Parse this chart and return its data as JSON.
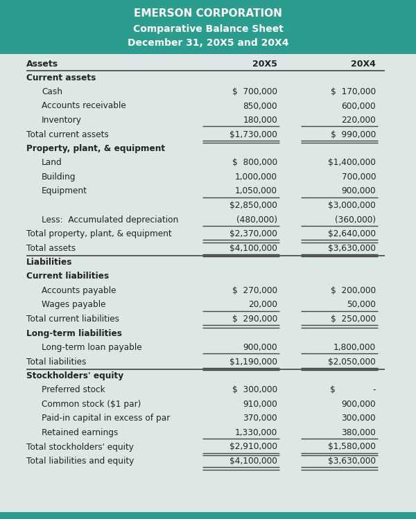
{
  "title1": "EMERSON CORPORATION",
  "title2": "Comparative Balance Sheet",
  "title3": "December 31, 20X5 and 20X4",
  "header_bg": "#2a9d8f",
  "header_text_color": "#ffffff",
  "body_bg": "#dde8e6",
  "col_headers": [
    "Assets",
    "20X5",
    "20X4"
  ],
  "footer_bg": "#2a9d8f",
  "rows": [
    {
      "label": "Current assets",
      "v1": "",
      "v2": "",
      "style": "section_bold",
      "indent": 0
    },
    {
      "label": "Cash",
      "v1": "$  700,000",
      "v2": "$  170,000",
      "style": "normal",
      "indent": 1
    },
    {
      "label": "Accounts receivable",
      "v1": "850,000",
      "v2": "600,000",
      "style": "normal",
      "indent": 1
    },
    {
      "label": "Inventory",
      "v1": "180,000",
      "v2": "220,000",
      "style": "normal_underline",
      "indent": 1
    },
    {
      "label": "Total current assets",
      "v1": "$1,730,000",
      "v2": "$  990,000",
      "style": "total_underline",
      "indent": 0
    },
    {
      "label": "Property, plant, & equipment",
      "v1": "",
      "v2": "",
      "style": "section_bold",
      "indent": 0
    },
    {
      "label": "Land",
      "v1": "$  800,000",
      "v2": "$1,400,000",
      "style": "normal",
      "indent": 1
    },
    {
      "label": "Building",
      "v1": "1,000,000",
      "v2": "700,000",
      "style": "normal",
      "indent": 1
    },
    {
      "label": "Equipment",
      "v1": "1,050,000",
      "v2": "900,000",
      "style": "normal_underline",
      "indent": 1
    },
    {
      "label": "",
      "v1": "$2,850,000",
      "v2": "$3,000,000",
      "style": "subtotal_plain",
      "indent": 1
    },
    {
      "label": "Less:  Accumulated depreciation",
      "v1": "(480,000)",
      "v2": "(360,000)",
      "style": "normal_underline",
      "indent": 1
    },
    {
      "label": "Total property, plant, & equipment",
      "v1": "$2,370,000",
      "v2": "$2,640,000",
      "style": "total_underline",
      "indent": 0
    },
    {
      "label": "Total assets",
      "v1": "$4,100,000",
      "v2": "$3,630,000",
      "style": "double_underline",
      "indent": 0
    },
    {
      "label": "Liabilities",
      "v1": "",
      "v2": "",
      "style": "section_bold_divider",
      "indent": 0
    },
    {
      "label": "Current liabilities",
      "v1": "",
      "v2": "",
      "style": "section_bold",
      "indent": 0
    },
    {
      "label": "Accounts payable",
      "v1": "$  270,000",
      "v2": "$  200,000",
      "style": "normal",
      "indent": 1
    },
    {
      "label": "Wages payable",
      "v1": "20,000",
      "v2": "50,000",
      "style": "normal_underline",
      "indent": 1
    },
    {
      "label": "Total current liabilities",
      "v1": "$  290,000",
      "v2": "$  250,000",
      "style": "total_underline",
      "indent": 0
    },
    {
      "label": "Long-term liabilities",
      "v1": "",
      "v2": "",
      "style": "section_bold",
      "indent": 0
    },
    {
      "label": "Long-term loan payable",
      "v1": "900,000",
      "v2": "1,800,000",
      "style": "normal_underline",
      "indent": 1
    },
    {
      "label": "Total liabilities",
      "v1": "$1,190,000",
      "v2": "$2,050,000",
      "style": "total_underline",
      "indent": 0
    },
    {
      "label": "Stockholders' equity",
      "v1": "",
      "v2": "",
      "style": "section_bold_divider",
      "indent": 0
    },
    {
      "label": "Preferred stock",
      "v1": "$  300,000",
      "v2": "$              -",
      "style": "normal",
      "indent": 1
    },
    {
      "label": "Common stock ($1 par)",
      "v1": "910,000",
      "v2": "900,000",
      "style": "normal",
      "indent": 1
    },
    {
      "label": "Paid-in capital in excess of par",
      "v1": "370,000",
      "v2": "300,000",
      "style": "normal",
      "indent": 1
    },
    {
      "label": "Retained earnings",
      "v1": "1,330,000",
      "v2": "380,000",
      "style": "normal_underline",
      "indent": 1
    },
    {
      "label": "Total stockholders' equity",
      "v1": "$2,910,000",
      "v2": "$1,580,000",
      "style": "total_underline",
      "indent": 0
    },
    {
      "label": "Total liabilities and equity",
      "v1": "$4,100,000",
      "v2": "$3,630,000",
      "style": "double_underline",
      "indent": 0
    }
  ]
}
